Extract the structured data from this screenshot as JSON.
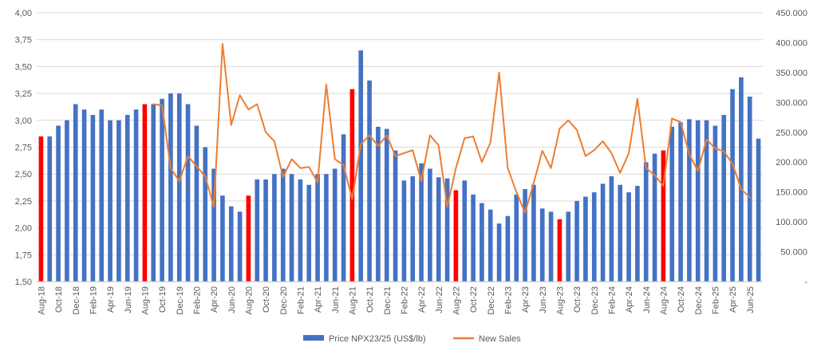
{
  "colors": {
    "bar": "#4472C4",
    "highlight_bar": "#FF0000",
    "line": "#ED7D31",
    "grid": "#D9D9D9",
    "text": "#595959"
  },
  "chart_data": {
    "type": "bar",
    "title": "",
    "xlabel": "",
    "ylabel": "",
    "categories": [
      "Aug-18",
      "Sep-18",
      "Oct-18",
      "Nov-18",
      "Dec-18",
      "Jan-19",
      "Feb-19",
      "Mar-19",
      "Apr-19",
      "May-19",
      "Jun-19",
      "Jul-19",
      "Aug-19",
      "Sep-19",
      "Oct-19",
      "Nov-19",
      "Dec-19",
      "Jan-20",
      "Feb-20",
      "Mar-20",
      "Apr-20",
      "May-20",
      "Jun-20",
      "Jul-20",
      "Aug-20",
      "Sep-20",
      "Oct-20",
      "Nov-20",
      "Dec-20",
      "Jan-21",
      "Feb-21",
      "Mar-21",
      "Apr-21",
      "May-21",
      "Jun-21",
      "Jul-21",
      "Aug-21",
      "Sep-21",
      "Oct-21",
      "Nov-21",
      "Dec-21",
      "Jan-22",
      "Feb-22",
      "Mar-22",
      "Apr-22",
      "May-22",
      "Jun-22",
      "Jul-22",
      "Aug-22",
      "Sep-22",
      "Oct-22",
      "Nov-22",
      "Dec-22",
      "Jan-23",
      "Feb-23",
      "Mar-23",
      "Apr-23",
      "May-23",
      "Jun-23",
      "Jul-23",
      "Aug-23",
      "Sep-23",
      "Oct-23",
      "Nov-23",
      "Dec-23",
      "Jan-24",
      "Feb-24",
      "Mar-24",
      "Apr-24",
      "May-24",
      "Jun-24",
      "Jul-24",
      "Aug-24",
      "Sep-24",
      "Oct-24",
      "Nov-24",
      "Dec-24",
      "Jan-25",
      "Feb-25",
      "Mar-25",
      "Apr-25",
      "May-25",
      "Jun-25",
      "Jul-25"
    ],
    "x_tick_labels": [
      "Aug-18",
      "Oct-18",
      "Dec-18",
      "Feb-19",
      "Apr-19",
      "Jun-19",
      "Aug-19",
      "Oct-19",
      "Dec-19",
      "Feb-20",
      "Apr-20",
      "Jun-20",
      "Aug-20",
      "Oct-20",
      "Dec-20",
      "Feb-21",
      "Apr-21",
      "Jun-21",
      "Aug-21",
      "Oct-21",
      "Dec-21",
      "Feb-22",
      "Apr-22",
      "Jun-22",
      "Aug-22",
      "Oct-22",
      "Dec-22",
      "Feb-23",
      "Apr-23",
      "Jun-23",
      "Aug-23",
      "Oct-23",
      "Dec-23",
      "Feb-24",
      "Apr-24",
      "Jun-24",
      "Aug-24",
      "Oct-24",
      "Dec-24",
      "Feb-25",
      "Apr-25",
      "Jun-25"
    ],
    "highlighted_categories": [
      "Aug-18",
      "Aug-19",
      "Aug-20",
      "Aug-21",
      "Aug-22",
      "Aug-23",
      "Aug-24"
    ],
    "series": [
      {
        "name": "Price NPX23/25 (US$/lb)",
        "type": "bar",
        "axis": "left",
        "values": [
          2.85,
          2.85,
          2.95,
          3.0,
          3.15,
          3.1,
          3.05,
          3.1,
          3.0,
          3.0,
          3.05,
          3.1,
          3.15,
          3.15,
          3.2,
          3.25,
          3.25,
          3.15,
          2.95,
          2.75,
          2.55,
          2.3,
          2.2,
          2.15,
          2.3,
          2.45,
          2.45,
          2.5,
          2.55,
          2.5,
          2.45,
          2.4,
          2.5,
          2.5,
          2.55,
          2.87,
          3.29,
          3.65,
          3.37,
          2.94,
          2.92,
          2.72,
          2.44,
          2.48,
          2.6,
          2.55,
          2.47,
          2.46,
          2.35,
          2.44,
          2.31,
          2.23,
          2.17,
          2.04,
          2.11,
          2.31,
          2.36,
          2.4,
          2.18,
          2.15,
          2.08,
          2.15,
          2.25,
          2.29,
          2.33,
          2.41,
          2.48,
          2.4,
          2.33,
          2.39,
          2.61,
          2.69,
          2.72,
          2.94,
          2.98,
          3.01,
          3.0,
          3.0,
          2.95,
          3.05,
          3.29,
          3.4,
          3.22,
          2.83
        ]
      },
      {
        "name": "New Sales",
        "type": "line",
        "axis": "right",
        "values": [
          null,
          null,
          null,
          null,
          null,
          null,
          null,
          null,
          null,
          null,
          null,
          null,
          null,
          297000,
          295000,
          190000,
          168000,
          210000,
          193000,
          176000,
          125000,
          398000,
          262000,
          312000,
          288000,
          297000,
          250000,
          235000,
          175000,
          205000,
          190000,
          192000,
          166000,
          330000,
          205000,
          195000,
          138000,
          230000,
          245000,
          227000,
          245000,
          210000,
          215000,
          220000,
          168000,
          245000,
          228000,
          125000,
          190000,
          240000,
          243000,
          200000,
          233000,
          350000,
          190000,
          150000,
          115000,
          165000,
          219000,
          190000,
          256000,
          270000,
          254000,
          210000,
          220000,
          235000,
          215000,
          182000,
          215000,
          306000,
          190000,
          178000,
          160000,
          273000,
          267000,
          213000,
          185000,
          238000,
          223000,
          218000,
          197000,
          155000,
          141000,
          null
        ]
      }
    ],
    "y_left": {
      "min": 1.5,
      "max": 4.0,
      "step": 0.25,
      "tick_labels": [
        "1,50",
        "1,75",
        "2,00",
        "2,25",
        "2,50",
        "2,75",
        "3,00",
        "3,25",
        "3,50",
        "3,75",
        "4,00"
      ]
    },
    "y_right": {
      "min": 0,
      "max": 450000,
      "step": 50000,
      "tick_labels": [
        "-",
        "50.000",
        "100.000",
        "150.000",
        "200.000",
        "250.000",
        "300.000",
        "350.000",
        "400.000",
        "450.000"
      ]
    },
    "grid": true,
    "legend_position": "bottom-center",
    "legend": [
      "Price NPX23/25 (US$/lb)",
      "New Sales"
    ]
  }
}
